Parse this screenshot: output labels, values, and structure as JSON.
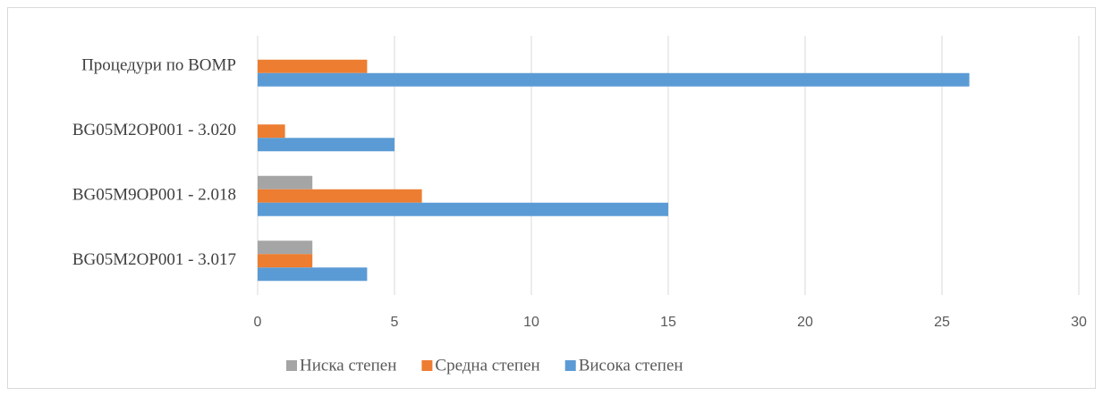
{
  "chart_data": {
    "type": "bar",
    "orientation": "horizontal",
    "categories": [
      "Процедури по ВОМР",
      "BG05M2OP001 - 3.020",
      "BG05M9OP001 - 2.018",
      "BG05M2OP001 - 3.017"
    ],
    "series": [
      {
        "name": "Ниска степен",
        "color": "#a5a5a5",
        "values": [
          0,
          0,
          2,
          2
        ]
      },
      {
        "name": "Средна степен",
        "color": "#ed7d31",
        "values": [
          4,
          1,
          6,
          2
        ]
      },
      {
        "name": "Висока степен",
        "color": "#5b9bd5",
        "values": [
          26,
          5,
          15,
          4
        ]
      }
    ],
    "xlim": [
      0,
      30
    ],
    "xticks": [
      0,
      5,
      10,
      15,
      20,
      25,
      30
    ],
    "grid": true,
    "legend": "bottom"
  }
}
